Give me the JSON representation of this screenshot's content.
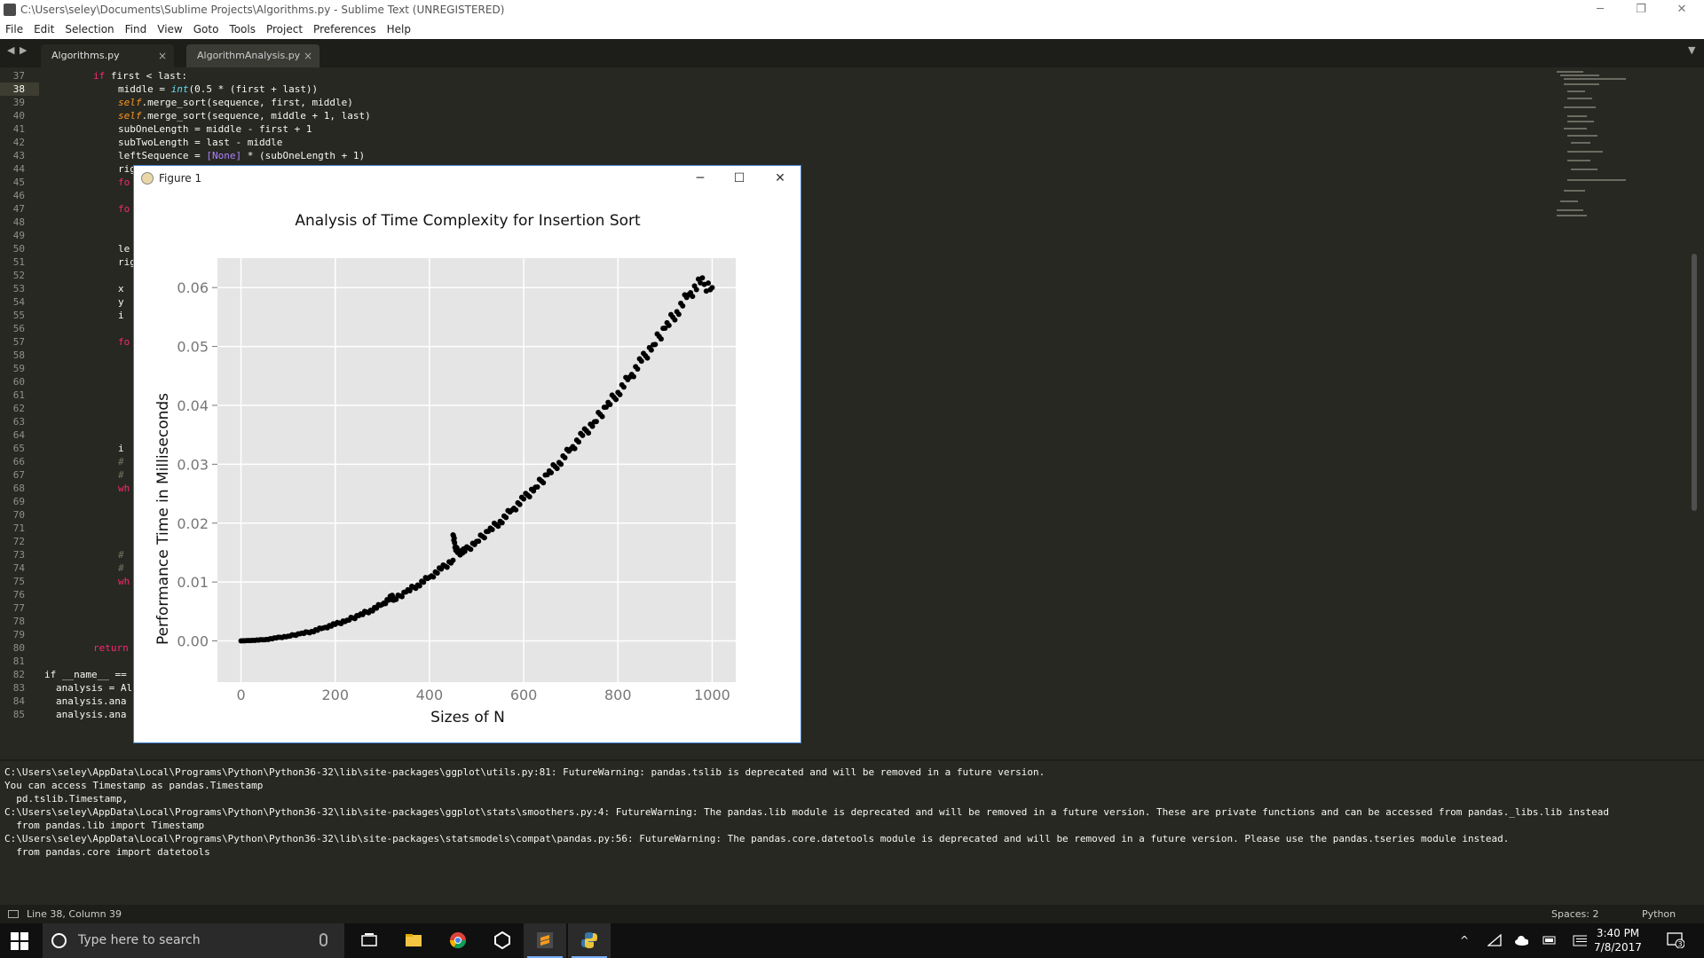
{
  "window": {
    "title": "C:\\Users\\seley\\Documents\\Sublime Projects\\Algorithms.py - Sublime Text (UNREGISTERED)",
    "minimize": "─",
    "restore": "❐",
    "close": "✕"
  },
  "menu": [
    "File",
    "Edit",
    "Selection",
    "Find",
    "View",
    "Goto",
    "Tools",
    "Project",
    "Preferences",
    "Help"
  ],
  "tabs": [
    {
      "label": "Algorithms.py",
      "active": true
    },
    {
      "label": "AlgorithmAnalysis.py",
      "active": false
    }
  ],
  "tab_close": "×",
  "nav": {
    "back": "◀",
    "forward": "▶",
    "overflow": "▼"
  },
  "editor": {
    "line_numbers": [
      "37",
      "38",
      "39",
      "40",
      "41",
      "42",
      "43",
      "44",
      "45",
      "46",
      "47",
      "48",
      "49",
      "50",
      "51",
      "52",
      "53",
      "54",
      "55",
      "56",
      "57",
      "58",
      "59",
      "60",
      "61",
      "62",
      "63",
      "64",
      "65",
      "66",
      "67",
      "68",
      "69",
      "70",
      "71",
      "72",
      "73",
      "74",
      "75",
      "76",
      "77",
      "78",
      "79",
      "80",
      "81",
      "82",
      "83",
      "84",
      "85"
    ],
    "current_line": "38",
    "lines": {
      "l37": {
        "kw": "if",
        "text": " first < last:"
      },
      "l38": {
        "text": "middle = ",
        "fn": "int",
        "rest": "(0.5 * (first + last))"
      },
      "l39": {
        "self": "self",
        "text": ".merge_sort(sequence, first, middle)"
      },
      "l40": {
        "self": "self",
        "text": ".merge_sort(sequence, middle + 1, last)"
      },
      "l41": "subOneLength = middle - first + 1",
      "l42": "subTwoLength = last - middle",
      "l43": {
        "text": "leftSequence = ",
        "none": "[None]",
        "rest": " * (subOneLength + 1)"
      },
      "l44": "rig",
      "l45": "fo",
      "l47": "fo",
      "l50": "le",
      "l51": "rig",
      "l53": "x",
      "l54": "y",
      "l55": "i",
      "l57": "fo",
      "l65": "i",
      "l66": "# ",
      "l67": "# ",
      "l68": "wh",
      "l73": "# ",
      "l74": "# ",
      "l75": "wh",
      "l80": "return",
      "l82": "if __name__ ==",
      "l83": "analysis = Al",
      "l84": "analysis.ana",
      "l85": "analysis.ana"
    }
  },
  "figure": {
    "title": "Figure 1",
    "minimize": "─",
    "maximize": "☐",
    "close": "✕"
  },
  "chart_data": {
    "type": "scatter",
    "title": "Analysis of Time Complexity for Insertion Sort",
    "xlabel": "Sizes of N",
    "ylabel": "Performance Time in Milliseconds",
    "xlim": [
      -50,
      1050
    ],
    "ylim": [
      -0.007,
      0.065
    ],
    "xticks": [
      0,
      200,
      400,
      600,
      800,
      1000
    ],
    "yticks": [
      0.0,
      0.01,
      0.02,
      0.03,
      0.04,
      0.05,
      0.06
    ],
    "ytick_labels": [
      "0.00",
      "0.01",
      "0.02",
      "0.03",
      "0.04",
      "0.05",
      "0.06"
    ],
    "grid": true,
    "background": "#e5e5e5",
    "point_color": "#000000",
    "series": [
      {
        "x": [
          0,
          25,
          50,
          75,
          100,
          125,
          150,
          175,
          200,
          225,
          250,
          275,
          300,
          320,
          325,
          350,
          375,
          400,
          425,
          450,
          450,
          455,
          460,
          475,
          500,
          525,
          550,
          575,
          600,
          625,
          650,
          675,
          700,
          725,
          750,
          775,
          800,
          825,
          850,
          875,
          900,
          925,
          950,
          975,
          1000
        ],
        "y": [
          0.0,
          0.0001,
          0.0002,
          0.0005,
          0.0008,
          0.0012,
          0.0016,
          0.0022,
          0.0028,
          0.0035,
          0.0043,
          0.0052,
          0.0062,
          0.0075,
          0.007,
          0.0083,
          0.0095,
          0.0108,
          0.0122,
          0.0137,
          0.018,
          0.016,
          0.015,
          0.0152,
          0.0169,
          0.0186,
          0.0203,
          0.0222,
          0.0241,
          0.0261,
          0.0282,
          0.0303,
          0.0326,
          0.0349,
          0.0372,
          0.0397,
          0.0422,
          0.0448,
          0.0475,
          0.0503,
          0.0531,
          0.0559,
          0.0588,
          0.0608,
          0.06
        ]
      }
    ]
  },
  "console": [
    "C:\\Users\\seley\\AppData\\Local\\Programs\\Python\\Python36-32\\lib\\site-packages\\ggplot\\utils.py:81: FutureWarning: pandas.tslib is deprecated and will be removed in a future version.",
    "You can access Timestamp as pandas.Timestamp",
    "  pd.tslib.Timestamp,",
    "C:\\Users\\seley\\AppData\\Local\\Programs\\Python\\Python36-32\\lib\\site-packages\\ggplot\\stats\\smoothers.py:4: FutureWarning: The pandas.lib module is deprecated and will be removed in a future version. These are private functions and can be accessed from pandas._libs.lib instead",
    "  from pandas.lib import Timestamp",
    "C:\\Users\\seley\\AppData\\Local\\Programs\\Python\\Python36-32\\lib\\site-packages\\statsmodels\\compat\\pandas.py:56: FutureWarning: The pandas.core.datetools module is deprecated and will be removed in a future version. Please use the pandas.tseries module instead.",
    "  from pandas.core import datetools"
  ],
  "statusbar": {
    "position": "Line 38, Column 39",
    "spaces": "Spaces: 2",
    "syntax": "Python"
  },
  "taskbar": {
    "search_placeholder": "Type here to search",
    "time": "3:40 PM",
    "date": "7/8/2017",
    "notification_count": "3",
    "tray_up": "^"
  },
  "colors": {
    "editor_bg": "#272822",
    "keyword": "#f92672",
    "function": "#66d9ef",
    "number": "#ae81ff",
    "taskbar_bg": "#101010"
  }
}
